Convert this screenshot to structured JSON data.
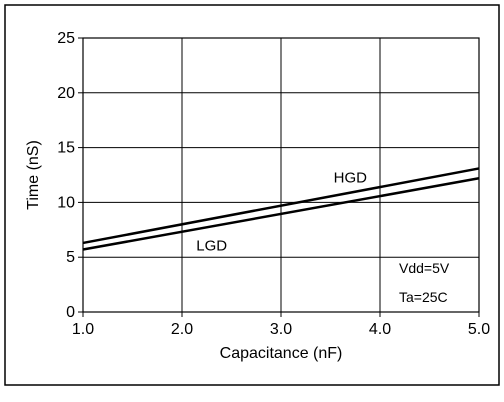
{
  "chart_data": {
    "type": "line",
    "title": "",
    "xlabel": "Capacitance (nF)",
    "ylabel": "Time (nS)",
    "xlim": [
      1.0,
      5.0
    ],
    "ylim": [
      0,
      25
    ],
    "x_ticks": [
      "1.0",
      "2.0",
      "3.0",
      "4.0",
      "5.0"
    ],
    "y_ticks": [
      "0",
      "5",
      "10",
      "15",
      "20",
      "25"
    ],
    "grid": true,
    "series": [
      {
        "name": "HGD",
        "x": [
          1.0,
          5.0
        ],
        "y": [
          6.3,
          13.1
        ]
      },
      {
        "name": "LGD",
        "x": [
          1.0,
          5.0
        ],
        "y": [
          5.7,
          12.2
        ]
      }
    ],
    "annotations": [
      "Vdd=5V",
      "Ta=25C"
    ]
  }
}
